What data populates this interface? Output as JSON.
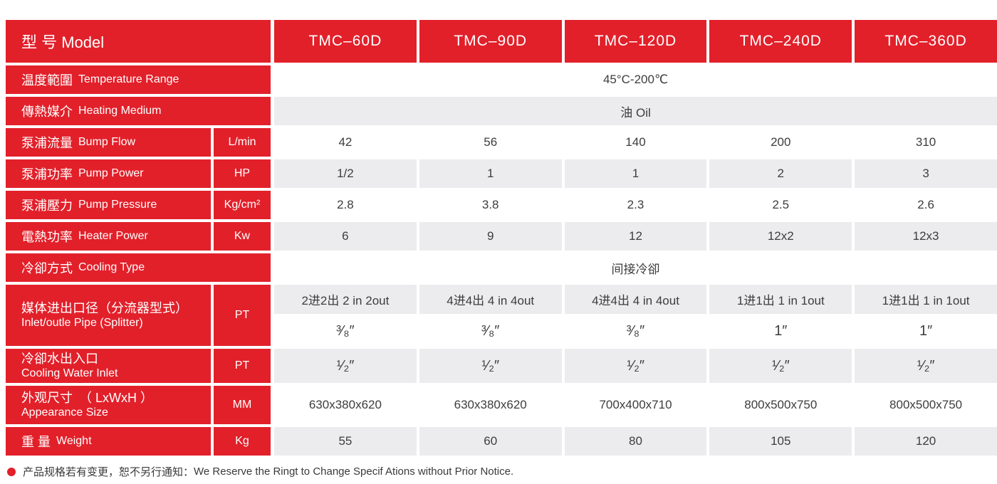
{
  "colors": {
    "red": "#E2202A",
    "alt_row": "#ECECEE",
    "value_text": "#3D3D3D"
  },
  "header": {
    "model_label": "型 号 Model",
    "models": [
      "TMC–60D",
      "TMC–90D",
      "TMC–120D",
      "TMC–240D",
      "TMC–360D"
    ]
  },
  "rows": {
    "temperature_range": {
      "zh": "温度範圍",
      "en": "Temperature Range",
      "value": "45°C-200℃"
    },
    "heating_medium": {
      "zh": "傳熱媒介",
      "en": "Heating Medium",
      "value": "油 Oil"
    },
    "bump_flow": {
      "zh": "泵浦流量",
      "en": "Bump Flow",
      "unit": "L/min",
      "values": [
        "42",
        "56",
        "140",
        "200",
        "310"
      ]
    },
    "pump_power": {
      "zh": "泵浦功率",
      "en": "Pump Power",
      "unit": "HP",
      "values": [
        "1/2",
        "1",
        "1",
        "2",
        "3"
      ]
    },
    "pump_pressure": {
      "zh": "泵浦壓力",
      "en": "Pump Pressure",
      "unit": "Kg/cm²",
      "values": [
        "2.8",
        "3.8",
        "2.3",
        "2.5",
        "2.6"
      ]
    },
    "heater_power": {
      "zh": "電熱功率",
      "en": "Heater Power",
      "unit": "Kw",
      "values": [
        "6",
        "9",
        "12",
        "12x2",
        "12x3"
      ]
    },
    "cooling_type": {
      "zh": "冷卻方式",
      "en": "Cooling Type",
      "value": "间接冷卻"
    },
    "inlet_pipe": {
      "zh": "媒体进出口径（分流器型式）",
      "en": "Inlet/outle Pipe (Splitter)",
      "unit": "PT",
      "ports": [
        "2进2出 2 in 2out",
        "4进4出 4 in 4out",
        "4进4出 4 in 4out",
        "1进1出 1 in 1out",
        "1进1出 1 in 1out"
      ],
      "sizes": [
        "³⁄₈″",
        "³⁄₈″",
        "³⁄₈″",
        "1″",
        "1″"
      ]
    },
    "cooling_water": {
      "zh": "冷卻水出入口",
      "en": "Cooling Water Inlet",
      "unit": "PT",
      "values": [
        "¹⁄₂″",
        "¹⁄₂″",
        "¹⁄₂″",
        "¹⁄₂″",
        "¹⁄₂″"
      ]
    },
    "appearance": {
      "zh": "外观尺寸　（ LxWxH ）",
      "en": "Appearance Size",
      "unit": "MM",
      "values": [
        "630x380x620",
        "630x380x620",
        "700x400x710",
        "800x500x750",
        "800x500x750"
      ]
    },
    "weight": {
      "zh": "重 量",
      "en": "Weight",
      "unit": "Kg",
      "values": [
        "55",
        "60",
        "80",
        "105",
        "120"
      ]
    }
  },
  "footer": {
    "zh": "产品规格若有变更，恕不另行通知：",
    "en": "We Reserve the Ringt to Change Specif Ations without Prior Notice."
  }
}
